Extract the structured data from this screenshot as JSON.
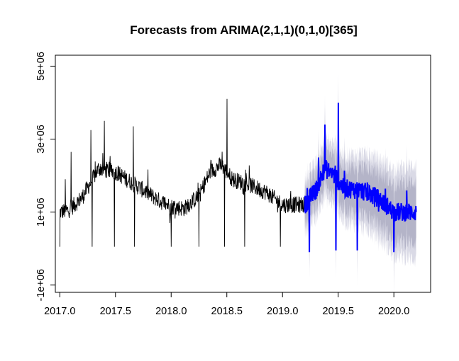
{
  "chart_data": {
    "type": "line",
    "title": "Forecasts from ARIMA(2,1,1)(0,1,0)[365]",
    "xlabel": "",
    "ylabel": "",
    "xlim": [
      2016.96,
      2020.33
    ],
    "ylim": [
      -1200000,
      5300000
    ],
    "x_ticks": [
      2017.0,
      2017.5,
      2018.0,
      2018.5,
      2019.0,
      2019.5,
      2020.0
    ],
    "x_tick_labels": [
      "2017.0",
      "2017.5",
      "2018.0",
      "2018.5",
      "2019.0",
      "2019.5",
      "2020.0"
    ],
    "y_ticks": [
      -1000000,
      1000000,
      3000000,
      5000000
    ],
    "y_tick_labels": [
      "-1e+06",
      "1e+06",
      "3e+06",
      "5e+06"
    ],
    "grid": false,
    "legend": "none",
    "colors": {
      "history": "#000000",
      "forecast": "#0000ff",
      "band_95": "#dadae6",
      "band_80": "#b4b4c8"
    },
    "history_range": [
      2017.0,
      2019.2
    ],
    "forecast_range": [
      2019.2,
      2020.2
    ],
    "history_level_anchors": {
      "x": [
        2017.0,
        2017.08,
        2017.2,
        2017.35,
        2017.5,
        2017.7,
        2017.9,
        2018.0,
        2018.12,
        2018.25,
        2018.35,
        2018.45,
        2018.55,
        2018.7,
        2018.85,
        2019.0,
        2019.2
      ],
      "y": [
        1000000,
        1050000,
        1400000,
        2200000,
        2100000,
        1700000,
        1300000,
        1150000,
        1100000,
        1450000,
        2100000,
        2300000,
        1900000,
        1750000,
        1550000,
        1200000,
        1200000
      ]
    },
    "history_spikes": [
      {
        "x": 2017.0,
        "y": 50000
      },
      {
        "x": 2017.05,
        "y": 1900000
      },
      {
        "x": 2017.1,
        "y": 2650000
      },
      {
        "x": 2017.28,
        "y": 3250000
      },
      {
        "x": 2017.29,
        "y": 50000
      },
      {
        "x": 2017.4,
        "y": 3500000
      },
      {
        "x": 2017.49,
        "y": 50000
      },
      {
        "x": 2017.66,
        "y": 3350000
      },
      {
        "x": 2017.67,
        "y": 50000
      },
      {
        "x": 2017.99,
        "y": 700000
      },
      {
        "x": 2018.0,
        "y": 50000
      },
      {
        "x": 2018.25,
        "y": 50000
      },
      {
        "x": 2018.48,
        "y": 50000
      },
      {
        "x": 2018.5,
        "y": 4100000
      },
      {
        "x": 2018.66,
        "y": 50000
      },
      {
        "x": 2018.98,
        "y": 50000
      }
    ],
    "forecast_level_anchors": {
      "x": [
        2019.2,
        2019.3,
        2019.38,
        2019.45,
        2019.55,
        2019.7,
        2019.85,
        2020.0,
        2020.1,
        2020.2
      ],
      "y": [
        1200000,
        1600000,
        2200000,
        2050000,
        1650000,
        1600000,
        1400000,
        1000000,
        1000000,
        1000000
      ]
    },
    "forecast_spikes": [
      {
        "x": 2019.24,
        "y": -100000
      },
      {
        "x": 2019.38,
        "y": 3400000
      },
      {
        "x": 2019.48,
        "y": -50000
      },
      {
        "x": 2019.5,
        "y": 4000000
      },
      {
        "x": 2019.67,
        "y": -50000
      },
      {
        "x": 2020.0,
        "y": -100000
      }
    ],
    "interval_halfwidth_80": [
      450000,
      850000
    ],
    "interval_halfwidth_95": [
      700000,
      1300000
    ]
  }
}
